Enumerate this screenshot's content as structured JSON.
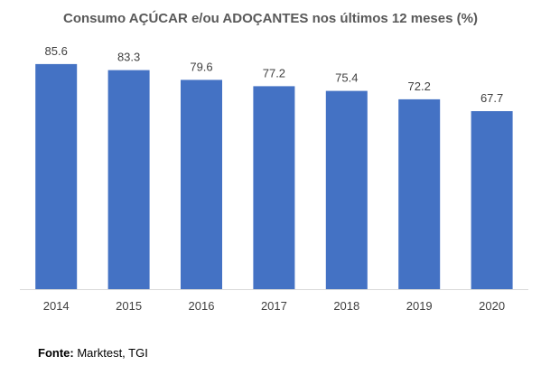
{
  "chart_data": {
    "type": "bar",
    "title": "Consumo AÇÚCAR e/ou ADOÇANTES nos últimos 12 meses (%)",
    "categories": [
      "2014",
      "2015",
      "2016",
      "2017",
      "2018",
      "2019",
      "2020"
    ],
    "values": [
      85.6,
      83.3,
      79.6,
      77.2,
      75.4,
      72.2,
      67.7
    ],
    "data_labels": [
      "85.6",
      "83.3",
      "79.6",
      "77.2",
      "75.4",
      "72.2",
      "67.7"
    ],
    "ylim": [
      0,
      87.3
    ],
    "grid": false,
    "legend": "none",
    "bar_color": "#4472C4"
  },
  "source": {
    "label": "Fonte:",
    "text": "Marktest, TGI"
  }
}
